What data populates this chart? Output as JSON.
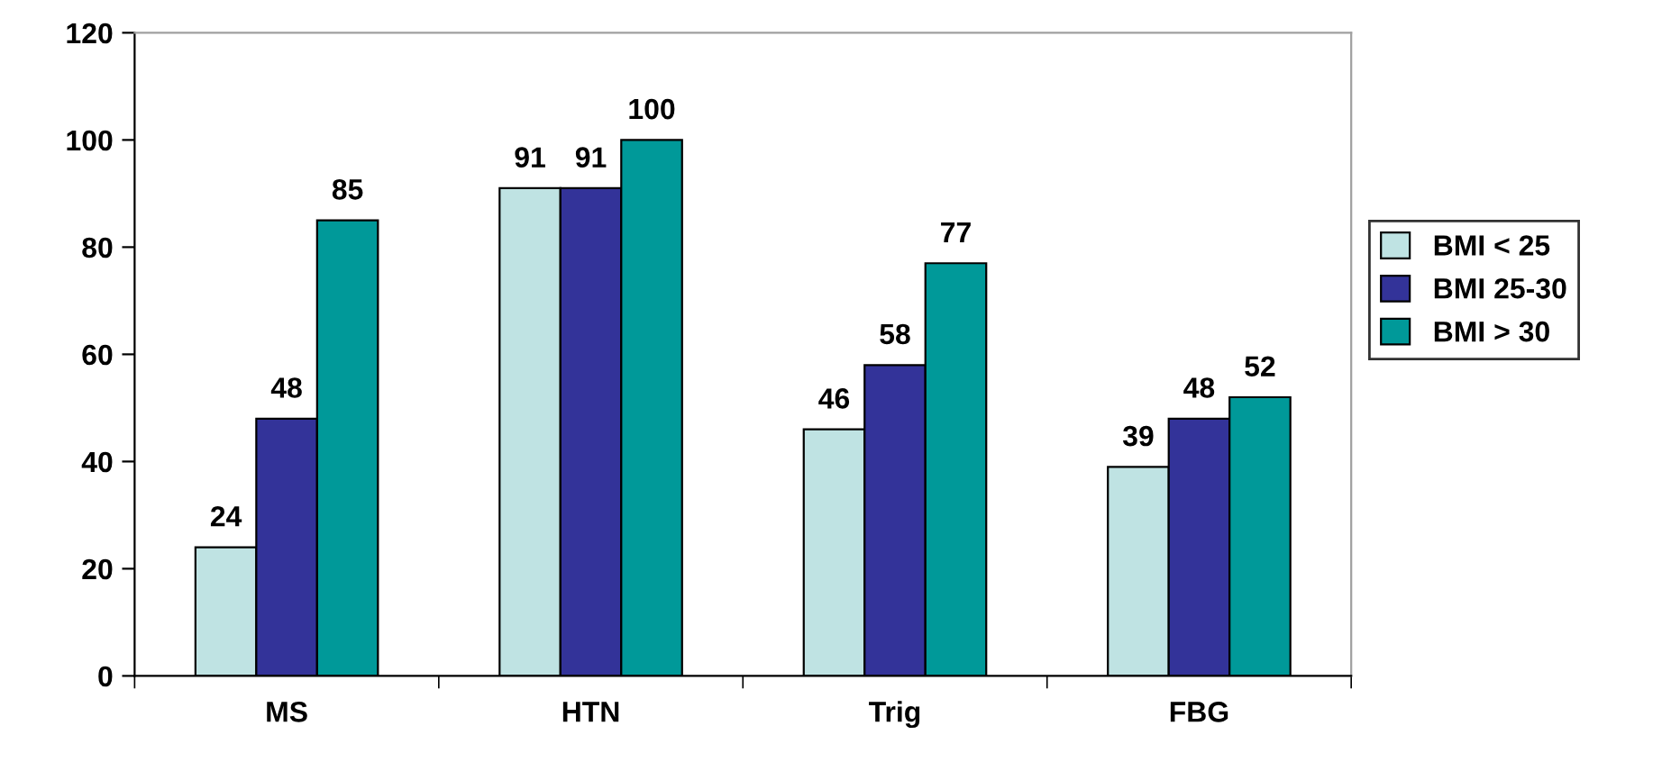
{
  "chart_data": {
    "type": "bar",
    "categories": [
      "MS",
      "HTN",
      "Trig",
      "FBG"
    ],
    "series": [
      {
        "name": "BMI < 25",
        "color": "#bfe3e3",
        "values": [
          24,
          91,
          46,
          39
        ]
      },
      {
        "name": "BMI 25-30",
        "color": "#333399",
        "values": [
          48,
          91,
          58,
          48
        ]
      },
      {
        "name": "BMI > 30",
        "color": "#009999",
        "values": [
          85,
          100,
          77,
          52
        ]
      }
    ],
    "ylim": [
      0,
      120
    ],
    "yticks": [
      0,
      20,
      40,
      60,
      80,
      100,
      120
    ],
    "data_labels": true,
    "legend": "right",
    "grid": false
  }
}
